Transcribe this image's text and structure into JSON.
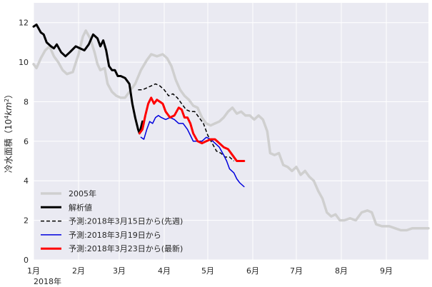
{
  "chart_data": {
    "type": "line",
    "title": "",
    "ylabel": "冷水面積（10⁴km²）",
    "ylabel_parts": {
      "prefix": "冷水面積（10",
      "exp": "4",
      "unit": "km",
      "exp2": "2",
      "suffix": "）"
    },
    "xlabel": "",
    "year_label": "2018年",
    "ylim": [
      0,
      13
    ],
    "yticks": [
      0,
      2,
      4,
      6,
      8,
      10,
      12
    ],
    "xlim": [
      "2018-01-01",
      "2018-09-30"
    ],
    "xticks": [
      {
        "date": "2018-01-01",
        "label": "1月"
      },
      {
        "date": "2018-02-01",
        "label": "2月"
      },
      {
        "date": "2018-03-01",
        "label": "3月"
      },
      {
        "date": "2018-04-01",
        "label": "4月"
      },
      {
        "date": "2018-05-01",
        "label": "5月"
      },
      {
        "date": "2018-06-01",
        "label": "6月"
      },
      {
        "date": "2018-07-01",
        "label": "7月"
      },
      {
        "date": "2018-08-01",
        "label": "8月"
      },
      {
        "date": "2018-09-01",
        "label": "9月"
      }
    ],
    "grid": true,
    "legend_position": "lower-left",
    "colors": {
      "background": "#eaeaf2",
      "grid": "#ffffff"
    },
    "series": [
      {
        "name": "2005年",
        "color": "#cfcfcf",
        "width": 3.5,
        "dash": "",
        "points": [
          [
            "2018-01-01",
            9.9
          ],
          [
            "2018-01-03",
            9.7
          ],
          [
            "2018-01-06",
            10.2
          ],
          [
            "2018-01-09",
            10.6
          ],
          [
            "2018-01-12",
            10.8
          ],
          [
            "2018-01-15",
            10.3
          ],
          [
            "2018-01-18",
            10.0
          ],
          [
            "2018-01-21",
            9.6
          ],
          [
            "2018-01-24",
            9.4
          ],
          [
            "2018-01-28",
            9.5
          ],
          [
            "2018-02-01",
            10.4
          ],
          [
            "2018-02-04",
            11.3
          ],
          [
            "2018-02-06",
            11.6
          ],
          [
            "2018-02-09",
            11.2
          ],
          [
            "2018-02-12",
            10.5
          ],
          [
            "2018-02-14",
            9.9
          ],
          [
            "2018-02-16",
            9.6
          ],
          [
            "2018-02-19",
            9.7
          ],
          [
            "2018-02-21",
            8.9
          ],
          [
            "2018-02-24",
            8.5
          ],
          [
            "2018-02-27",
            8.3
          ],
          [
            "2018-03-02",
            8.2
          ],
          [
            "2018-03-05",
            8.2
          ],
          [
            "2018-03-08",
            8.5
          ],
          [
            "2018-03-12",
            8.9
          ],
          [
            "2018-03-16",
            9.6
          ],
          [
            "2018-03-20",
            10.1
          ],
          [
            "2018-03-23",
            10.4
          ],
          [
            "2018-03-27",
            10.3
          ],
          [
            "2018-03-31",
            10.4
          ],
          [
            "2018-04-03",
            10.2
          ],
          [
            "2018-04-06",
            9.8
          ],
          [
            "2018-04-09",
            9.1
          ],
          [
            "2018-04-12",
            8.6
          ],
          [
            "2018-04-15",
            8.3
          ],
          [
            "2018-04-18",
            8.1
          ],
          [
            "2018-04-21",
            7.8
          ],
          [
            "2018-04-24",
            7.7
          ],
          [
            "2018-04-27",
            7.2
          ],
          [
            "2018-04-30",
            6.9
          ],
          [
            "2018-05-03",
            6.8
          ],
          [
            "2018-05-06",
            6.9
          ],
          [
            "2018-05-09",
            7.0
          ],
          [
            "2018-05-12",
            7.2
          ],
          [
            "2018-05-15",
            7.5
          ],
          [
            "2018-05-18",
            7.7
          ],
          [
            "2018-05-21",
            7.4
          ],
          [
            "2018-05-24",
            7.5
          ],
          [
            "2018-05-27",
            7.3
          ],
          [
            "2018-05-30",
            7.3
          ],
          [
            "2018-06-02",
            7.1
          ],
          [
            "2018-06-05",
            7.3
          ],
          [
            "2018-06-08",
            7.1
          ],
          [
            "2018-06-11",
            6.5
          ],
          [
            "2018-06-13",
            5.4
          ],
          [
            "2018-06-16",
            5.3
          ],
          [
            "2018-06-19",
            5.4
          ],
          [
            "2018-06-22",
            4.8
          ],
          [
            "2018-06-25",
            4.7
          ],
          [
            "2018-06-28",
            4.5
          ],
          [
            "2018-07-01",
            4.7
          ],
          [
            "2018-07-04",
            4.3
          ],
          [
            "2018-07-07",
            4.5
          ],
          [
            "2018-07-10",
            4.2
          ],
          [
            "2018-07-13",
            4.0
          ],
          [
            "2018-07-16",
            3.5
          ],
          [
            "2018-07-19",
            3.1
          ],
          [
            "2018-07-22",
            2.4
          ],
          [
            "2018-07-25",
            2.2
          ],
          [
            "2018-07-28",
            2.3
          ],
          [
            "2018-07-31",
            2.0
          ],
          [
            "2018-08-03",
            2.0
          ],
          [
            "2018-08-07",
            2.1
          ],
          [
            "2018-08-11",
            2.0
          ],
          [
            "2018-08-15",
            2.4
          ],
          [
            "2018-08-19",
            2.5
          ],
          [
            "2018-08-22",
            2.4
          ],
          [
            "2018-08-25",
            1.8
          ],
          [
            "2018-08-29",
            1.7
          ],
          [
            "2018-09-03",
            1.7
          ],
          [
            "2018-09-07",
            1.6
          ],
          [
            "2018-09-11",
            1.5
          ],
          [
            "2018-09-15",
            1.5
          ],
          [
            "2018-09-19",
            1.6
          ],
          [
            "2018-09-23",
            1.6
          ],
          [
            "2018-09-27",
            1.6
          ],
          [
            "2018-09-30",
            1.6
          ]
        ]
      },
      {
        "name": "解析値",
        "color": "#000000",
        "width": 3,
        "dash": "",
        "points": [
          [
            "2018-01-01",
            11.8
          ],
          [
            "2018-01-03",
            11.9
          ],
          [
            "2018-01-06",
            11.5
          ],
          [
            "2018-01-08",
            11.4
          ],
          [
            "2018-01-10",
            11.0
          ],
          [
            "2018-01-13",
            10.8
          ],
          [
            "2018-01-15",
            10.7
          ],
          [
            "2018-01-17",
            10.9
          ],
          [
            "2018-01-20",
            10.5
          ],
          [
            "2018-01-23",
            10.3
          ],
          [
            "2018-01-26",
            10.5
          ],
          [
            "2018-01-30",
            10.8
          ],
          [
            "2018-02-02",
            10.7
          ],
          [
            "2018-02-05",
            10.6
          ],
          [
            "2018-02-08",
            10.9
          ],
          [
            "2018-02-11",
            11.4
          ],
          [
            "2018-02-14",
            11.2
          ],
          [
            "2018-02-16",
            10.8
          ],
          [
            "2018-02-18",
            11.1
          ],
          [
            "2018-02-20",
            10.6
          ],
          [
            "2018-02-22",
            9.8
          ],
          [
            "2018-02-24",
            9.6
          ],
          [
            "2018-02-26",
            9.6
          ],
          [
            "2018-02-28",
            9.3
          ],
          [
            "2018-03-02",
            9.3
          ],
          [
            "2018-03-05",
            9.2
          ],
          [
            "2018-03-08",
            8.9
          ],
          [
            "2018-03-10",
            7.9
          ],
          [
            "2018-03-12",
            7.2
          ],
          [
            "2018-03-14",
            6.6
          ],
          [
            "2018-03-15",
            6.4
          ],
          [
            "2018-03-17",
            7.0
          ]
        ]
      },
      {
        "name": "予測:2018年3月15日から(先週)",
        "color": "#000000",
        "width": 1.5,
        "dash": "5,3",
        "points": [
          [
            "2018-03-14",
            8.6
          ],
          [
            "2018-03-17",
            8.6
          ],
          [
            "2018-03-20",
            8.7
          ],
          [
            "2018-03-23",
            8.8
          ],
          [
            "2018-03-26",
            8.9
          ],
          [
            "2018-03-29",
            8.8
          ],
          [
            "2018-04-01",
            8.6
          ],
          [
            "2018-04-04",
            8.3
          ],
          [
            "2018-04-07",
            8.4
          ],
          [
            "2018-04-10",
            8.2
          ],
          [
            "2018-04-13",
            7.9
          ],
          [
            "2018-04-16",
            7.6
          ],
          [
            "2018-04-19",
            7.5
          ],
          [
            "2018-04-22",
            7.5
          ],
          [
            "2018-04-25",
            7.2
          ],
          [
            "2018-04-28",
            6.9
          ],
          [
            "2018-05-01",
            6.3
          ],
          [
            "2018-05-04",
            5.9
          ],
          [
            "2018-05-07",
            5.5
          ],
          [
            "2018-05-10",
            5.4
          ],
          [
            "2018-05-13",
            5.2
          ],
          [
            "2018-05-16",
            5.2
          ],
          [
            "2018-05-19",
            5.0
          ]
        ]
      },
      {
        "name": "予測:2018年3月19日から",
        "color": "#0000dd",
        "width": 1.5,
        "dash": "",
        "points": [
          [
            "2018-03-16",
            6.2
          ],
          [
            "2018-03-18",
            6.1
          ],
          [
            "2018-03-20",
            6.6
          ],
          [
            "2018-03-22",
            7.0
          ],
          [
            "2018-03-24",
            6.9
          ],
          [
            "2018-03-26",
            7.2
          ],
          [
            "2018-03-28",
            7.3
          ],
          [
            "2018-03-30",
            7.2
          ],
          [
            "2018-04-02",
            7.1
          ],
          [
            "2018-04-05",
            7.2
          ],
          [
            "2018-04-08",
            7.1
          ],
          [
            "2018-04-11",
            6.9
          ],
          [
            "2018-04-14",
            6.9
          ],
          [
            "2018-04-17",
            6.6
          ],
          [
            "2018-04-19",
            6.3
          ],
          [
            "2018-04-21",
            6.0
          ],
          [
            "2018-04-24",
            6.0
          ],
          [
            "2018-04-27",
            6.0
          ],
          [
            "2018-04-30",
            6.2
          ],
          [
            "2018-05-03",
            6.1
          ],
          [
            "2018-05-06",
            5.9
          ],
          [
            "2018-05-09",
            5.7
          ],
          [
            "2018-05-12",
            5.3
          ],
          [
            "2018-05-14",
            5.0
          ],
          [
            "2018-05-16",
            4.6
          ],
          [
            "2018-05-19",
            4.4
          ],
          [
            "2018-05-21",
            4.1
          ],
          [
            "2018-05-23",
            3.9
          ],
          [
            "2018-05-26",
            3.7
          ]
        ]
      },
      {
        "name": "予測:2018年3月23日から(最新)",
        "color": "#ff0000",
        "width": 3,
        "dash": "",
        "points": [
          [
            "2018-03-15",
            6.4
          ],
          [
            "2018-03-17",
            6.6
          ],
          [
            "2018-03-19",
            7.3
          ],
          [
            "2018-03-21",
            7.9
          ],
          [
            "2018-03-23",
            8.2
          ],
          [
            "2018-03-25",
            7.9
          ],
          [
            "2018-03-27",
            8.1
          ],
          [
            "2018-03-29",
            8.0
          ],
          [
            "2018-03-31",
            7.9
          ],
          [
            "2018-04-02",
            7.5
          ],
          [
            "2018-04-05",
            7.2
          ],
          [
            "2018-04-08",
            7.3
          ],
          [
            "2018-04-11",
            7.7
          ],
          [
            "2018-04-13",
            7.6
          ],
          [
            "2018-04-15",
            7.2
          ],
          [
            "2018-04-17",
            7.2
          ],
          [
            "2018-04-19",
            6.9
          ],
          [
            "2018-04-21",
            6.4
          ],
          [
            "2018-04-24",
            6.0
          ],
          [
            "2018-04-27",
            5.9
          ],
          [
            "2018-04-30",
            6.0
          ],
          [
            "2018-05-03",
            6.1
          ],
          [
            "2018-05-06",
            6.1
          ],
          [
            "2018-05-09",
            5.9
          ],
          [
            "2018-05-12",
            5.7
          ],
          [
            "2018-05-15",
            5.6
          ],
          [
            "2018-05-18",
            5.3
          ],
          [
            "2018-05-21",
            5.0
          ],
          [
            "2018-05-23",
            5.0
          ],
          [
            "2018-05-26",
            5.0
          ]
        ]
      }
    ]
  }
}
